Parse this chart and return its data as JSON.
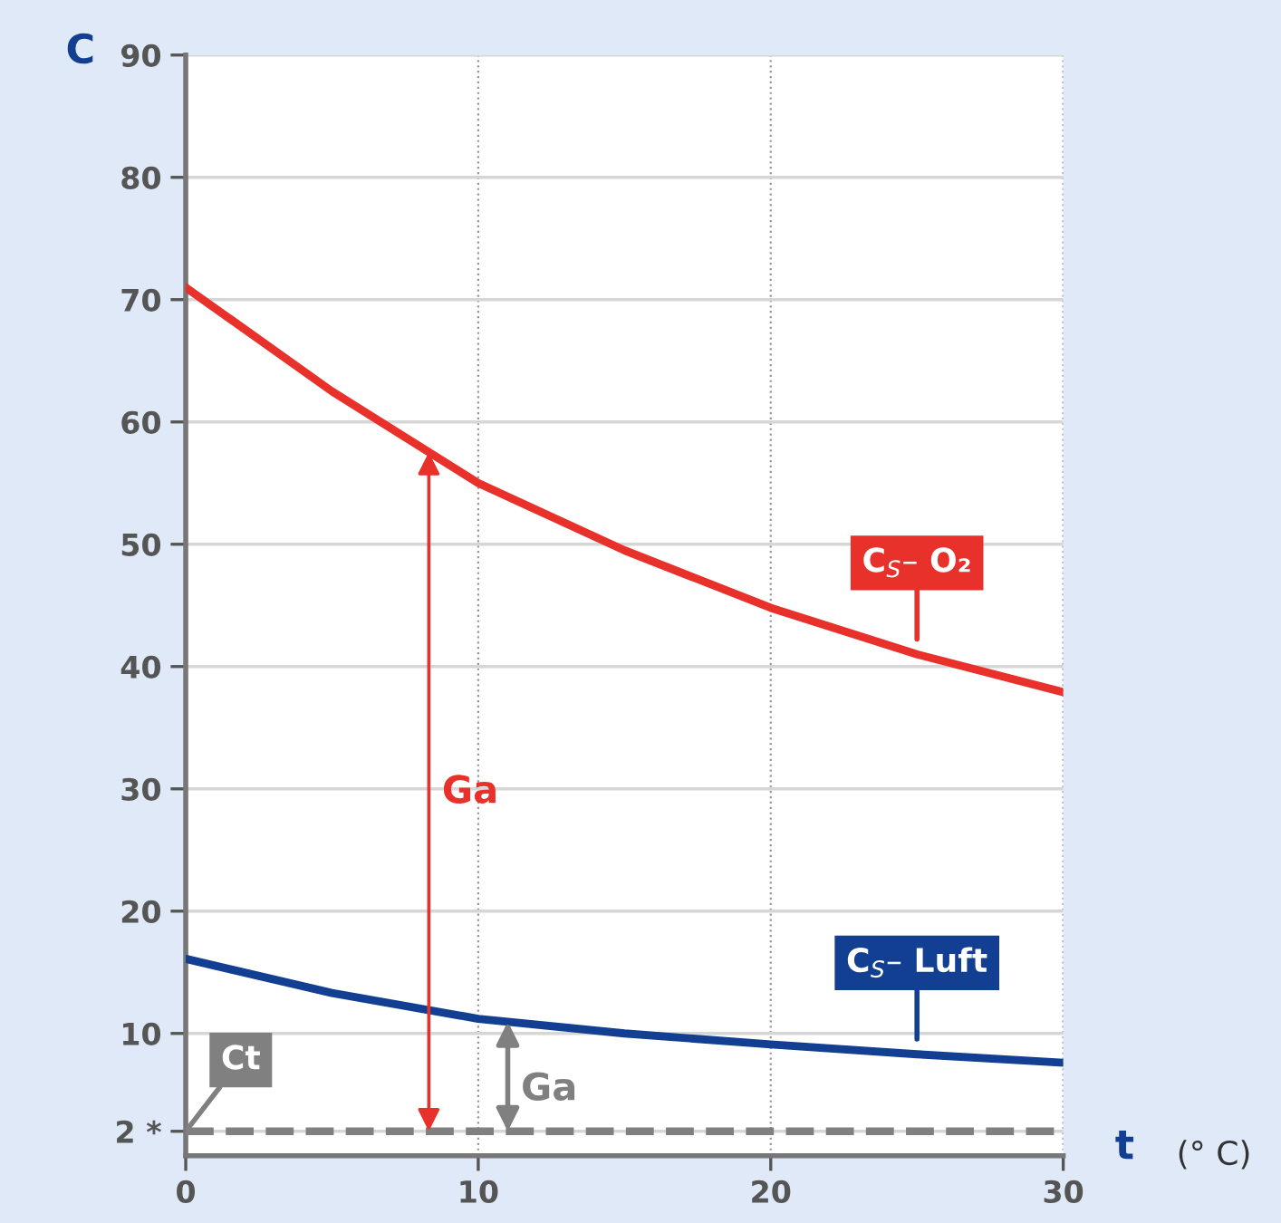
{
  "chart_data": {
    "type": "line",
    "ylabel": "C",
    "xlabel": "t",
    "x": [
      0,
      5,
      10,
      15,
      20,
      25,
      30
    ],
    "series": [
      {
        "name": "C$_{S}$– O₂",
        "color": "#e8312a",
        "values": [
          71,
          62.5,
          55,
          49.5,
          44.8,
          41,
          37.9
        ]
      },
      {
        "name": "C$_{S}$– Luft",
        "color": "#123f91",
        "values": [
          16.1,
          13.3,
          11.2,
          10,
          9.1,
          8.3,
          7.6
        ]
      }
    ],
    "xlim": [
      0,
      30
    ],
    "ylim": [
      0,
      90
    ],
    "xticks": [
      0,
      10,
      20,
      30
    ],
    "yticks": [
      {
        "value": 2,
        "label": "2 *"
      },
      10,
      20,
      30,
      40,
      50,
      60,
      70,
      80,
      90
    ],
    "ref_lines": [
      {
        "axis": "y",
        "value": 2,
        "label": "Ct",
        "color": "#808080",
        "line_style": "dashed"
      }
    ],
    "annotations": [
      "Ga",
      "Ga",
      "(° C)"
    ],
    "grid": true,
    "marker": "none",
    "line_style": "solid",
    "legend": false
  }
}
